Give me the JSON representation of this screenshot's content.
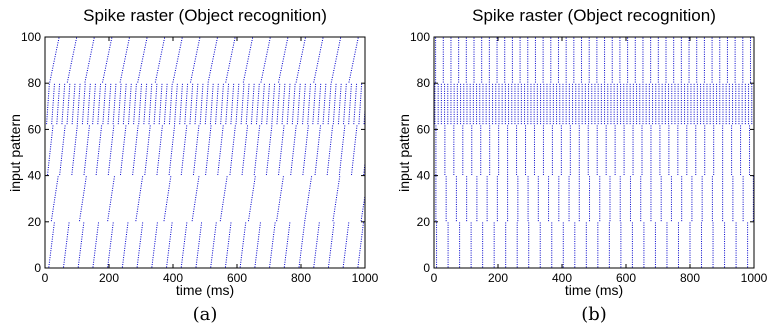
{
  "chart_data": [
    {
      "type": "scatter",
      "title": "Spike raster (Object recognition)",
      "xlabel": "time (ms)",
      "ylabel": "input pattern",
      "caption": "(a)",
      "xlim": [
        0,
        1000
      ],
      "ylim": [
        0,
        100
      ],
      "xticks": [
        0,
        200,
        400,
        600,
        800,
        1000
      ],
      "yticks": [
        0,
        20,
        40,
        60,
        80,
        100
      ],
      "grid": false,
      "marker_color": "#0000cc",
      "series": [
        {
          "neurons": [
            0,
            20
          ],
          "first_spike_ms": 12,
          "interval_ms": 46,
          "drift_ms_per_neuron": 0.9
        },
        {
          "neurons": [
            20,
            40
          ],
          "first_spike_ms": 20,
          "interval_ms": 88,
          "drift_ms_per_neuron": 1.1
        },
        {
          "neurons": [
            40,
            62
          ],
          "first_spike_ms": 8,
          "interval_ms": 38,
          "drift_ms_per_neuron": 0.8
        },
        {
          "neurons": [
            62,
            80
          ],
          "first_spike_ms": 5,
          "interval_ms": 16,
          "drift_ms_per_neuron": 0.5
        },
        {
          "neurons": [
            80,
            100
          ],
          "first_spike_ms": 15,
          "interval_ms": 55,
          "drift_ms_per_neuron": 1.5
        }
      ]
    },
    {
      "type": "scatter",
      "title": "Spike raster (Object recognition)",
      "xlabel": "time (ms)",
      "ylabel": "input pattern",
      "caption": "(b)",
      "xlim": [
        0,
        1000
      ],
      "ylim": [
        0,
        100
      ],
      "xticks": [
        0,
        200,
        400,
        600,
        800,
        1000
      ],
      "yticks": [
        0,
        20,
        40,
        60,
        80,
        100
      ],
      "grid": false,
      "marker_color": "#0000cc",
      "series": [
        {
          "neurons": [
            0,
            20
          ],
          "first_spike_ms": 8,
          "interval_ms": 36,
          "drift_ms_per_neuron": 0
        },
        {
          "neurons": [
            20,
            40
          ],
          "first_spike_ms": 6,
          "interval_ms": 32,
          "drift_ms_per_neuron": 0
        },
        {
          "neurons": [
            40,
            62
          ],
          "first_spike_ms": 6,
          "interval_ms": 28,
          "drift_ms_per_neuron": 0
        },
        {
          "neurons": [
            62,
            80
          ],
          "first_spike_ms": 3,
          "interval_ms": 10,
          "drift_ms_per_neuron": 0
        },
        {
          "neurons": [
            80,
            100
          ],
          "first_spike_ms": 5,
          "interval_ms": 24,
          "drift_ms_per_neuron": 0
        }
      ]
    }
  ]
}
